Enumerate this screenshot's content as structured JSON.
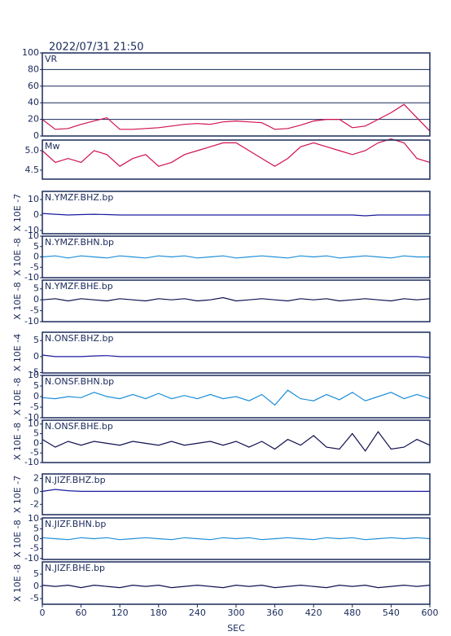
{
  "chart_data": {
    "type": "line",
    "title": "2022/07/31 21:50",
    "xlabel": "SEC",
    "x": [
      0,
      20,
      40,
      60,
      80,
      100,
      120,
      140,
      160,
      180,
      200,
      220,
      240,
      260,
      280,
      300,
      320,
      340,
      360,
      380,
      400,
      420,
      440,
      460,
      480,
      500,
      520,
      540,
      560,
      580,
      600
    ],
    "xlim": [
      0,
      600
    ],
    "xticks": [
      0,
      60,
      120,
      180,
      240,
      300,
      360,
      420,
      480,
      540,
      600
    ],
    "panels": [
      {
        "name": "VR",
        "color": "#d01050",
        "grid": true,
        "ylim": [
          0,
          100
        ],
        "yticks": [
          0,
          20,
          40,
          60,
          80,
          100
        ],
        "values": [
          20,
          8,
          9,
          14,
          18,
          22,
          8,
          8,
          9,
          10,
          12,
          14,
          15,
          14,
          17,
          18,
          17,
          16,
          8,
          9,
          13,
          18,
          20,
          20,
          10,
          12,
          20,
          28,
          38,
          22,
          6
        ]
      },
      {
        "name": "Mw",
        "color": "#d01050",
        "grid": false,
        "ylim": [
          4.27,
          5.27
        ],
        "yticks": [
          4.5,
          {
            "value": 5,
            "label": "5.0"
          }
        ],
        "values": [
          5.0,
          4.7,
          4.8,
          4.7,
          5.0,
          4.9,
          4.6,
          4.8,
          4.9,
          4.6,
          4.7,
          4.9,
          5.0,
          5.1,
          5.2,
          5.2,
          5.0,
          4.8,
          4.6,
          4.8,
          5.1,
          5.2,
          5.1,
          5.0,
          4.9,
          5.0,
          5.2,
          5.3,
          5.2,
          4.8,
          4.7
        ]
      },
      {
        "name": "N.YMZF.BHZ.bp",
        "ylabel": "X 10E -7",
        "color": "#1a1aa0",
        "grid": false,
        "ylim": [
          -12.1,
          15.3
        ],
        "yticks": [
          -10,
          0,
          10
        ],
        "values": [
          1,
          0.5,
          0,
          0.3,
          0.5,
          0.3,
          0,
          0,
          0,
          0,
          0,
          0,
          0,
          0,
          0,
          0,
          0,
          0,
          0,
          0,
          0,
          0,
          0,
          0,
          0,
          -0.5,
          0,
          0,
          0,
          0,
          0
        ]
      },
      {
        "name": "N.YMZF.BHN.bp",
        "ylabel": "X 10E -8",
        "color": "#1e8fd8",
        "grid": false,
        "ylim": [
          -10,
          10
        ],
        "yticks": [
          -10,
          -5,
          0,
          5,
          10
        ],
        "values": [
          0,
          0.5,
          -0.5,
          0.5,
          0,
          -0.5,
          0.5,
          0,
          -0.5,
          0.5,
          0,
          0.5,
          -0.5,
          0,
          0.5,
          -0.5,
          0,
          0.5,
          0,
          -0.5,
          0.5,
          0,
          0.5,
          -0.5,
          0,
          0.5,
          0,
          -0.5,
          0.5,
          0,
          0
        ]
      },
      {
        "name": "N.YMZF.BHE.bp",
        "ylabel": "X 10E -8",
        "color": "#101050",
        "grid": false,
        "ylim": [
          -10,
          9
        ],
        "yticks": [
          -10,
          -5,
          0,
          5
        ],
        "values": [
          0,
          0.5,
          -0.5,
          0.5,
          0,
          -0.5,
          0.5,
          0,
          -0.5,
          0.5,
          0,
          0.5,
          -0.5,
          0,
          1,
          -0.5,
          0,
          0.5,
          0,
          -0.5,
          0.5,
          0,
          0.5,
          -0.5,
          0,
          0.5,
          0,
          -0.5,
          0.5,
          0,
          0.5
        ]
      },
      {
        "name": "N.ONSF.BHZ.bp",
        "ylabel": "X 10E -4",
        "color": "#1a1aa0",
        "grid": false,
        "ylim": [
          -5.1,
          7.6
        ],
        "yticks": [
          -5,
          0,
          5
        ],
        "values": [
          0.5,
          0,
          0,
          0,
          0.2,
          0.3,
          0,
          0,
          0,
          0,
          0,
          0,
          0,
          0,
          0,
          0,
          0,
          0,
          0,
          0,
          0,
          0,
          0,
          0,
          0,
          0,
          0,
          0,
          0,
          0,
          -0.3
        ]
      },
      {
        "name": "N.ONSF.BHN.bp",
        "ylabel": "X 10E -8",
        "color": "#1e8fd8",
        "grid": false,
        "ylim": [
          -10,
          10
        ],
        "yticks": [
          -10,
          -5,
          0,
          5,
          10
        ],
        "values": [
          -0.5,
          -1,
          0,
          -0.5,
          2,
          0,
          -1,
          1,
          -1,
          1.5,
          -1,
          0.5,
          -1,
          1,
          -1,
          0,
          -2,
          1,
          -4,
          3,
          -1,
          -2,
          1,
          -1.5,
          2,
          -2,
          0,
          2,
          -1,
          1,
          -1
        ]
      },
      {
        "name": "N.ONSF.BHE.bp",
        "ylabel": "X 10E -8",
        "color": "#101050",
        "grid": false,
        "ylim": [
          -10,
          12
        ],
        "yticks": [
          -10,
          -5,
          0,
          5,
          10
        ],
        "values": [
          2,
          -2,
          1,
          -1,
          1,
          0,
          -1,
          1,
          0,
          -1,
          1,
          -1,
          0,
          1,
          -1,
          1,
          -2,
          1,
          -3,
          2,
          -1,
          4,
          -2,
          -3,
          5,
          -4,
          6,
          -3,
          -2,
          2,
          -1
        ]
      },
      {
        "name": "N.JIZF.BHZ.bp",
        "ylabel": "X 10E -7",
        "color": "#1a1aa0",
        "grid": false,
        "ylim": [
          -3.6,
          2.7
        ],
        "yticks": [
          -2,
          0,
          2
        ],
        "values": [
          0,
          0.3,
          0.1,
          0,
          0,
          0,
          0,
          0,
          0,
          0,
          0,
          0,
          0,
          0,
          0,
          0,
          0,
          0,
          0,
          0,
          0,
          0,
          0,
          0,
          0,
          0,
          0,
          0,
          0,
          0,
          0
        ]
      },
      {
        "name": "N.JIZF.BHN.bp",
        "ylabel": "X 10E -8",
        "color": "#1e8fd8",
        "grid": false,
        "ylim": [
          -10.5,
          10.5
        ],
        "yticks": [
          -10,
          -5,
          0,
          5,
          10
        ],
        "values": [
          0.5,
          0,
          -0.5,
          0.5,
          0,
          0.5,
          -0.5,
          0,
          0.5,
          0,
          -0.5,
          0.5,
          0,
          -0.5,
          0.5,
          0,
          0.5,
          -0.5,
          0,
          0.5,
          0,
          -0.5,
          0.5,
          0,
          0.5,
          -0.5,
          0,
          0.5,
          0,
          0.5,
          0
        ]
      },
      {
        "name": "N.JIZF.BHE.bp",
        "ylabel": "X 10E -8",
        "color": "#101050",
        "grid": false,
        "ylim": [
          -7.3,
          10
        ],
        "yticks": [
          -5,
          0,
          5
        ],
        "values": [
          0.5,
          0,
          0.5,
          -0.5,
          0.5,
          0,
          -0.5,
          0.5,
          0,
          0.5,
          -0.5,
          0,
          0.5,
          0,
          -0.5,
          0.5,
          0,
          0.5,
          -0.5,
          0,
          0.5,
          0,
          -0.5,
          0.5,
          0,
          0.5,
          -0.5,
          0,
          0.5,
          0,
          0.5
        ]
      }
    ]
  }
}
